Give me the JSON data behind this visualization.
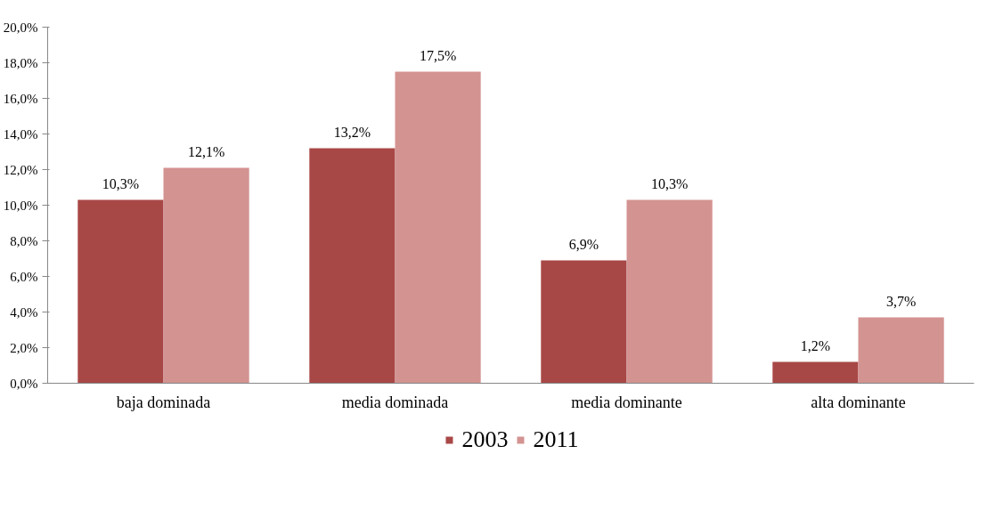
{
  "chart_data": {
    "type": "bar",
    "categories": [
      "baja dominada",
      "media dominada",
      "media dominante",
      "alta dominante"
    ],
    "series": [
      {
        "name": "2003",
        "color": "#a84846",
        "values": [
          10.3,
          13.2,
          6.9,
          1.2
        ],
        "value_labels": [
          "10,3%",
          "13,2%",
          "6,9%",
          "1,2%"
        ]
      },
      {
        "name": "2011",
        "color": "#d39391",
        "values": [
          12.1,
          17.5,
          10.3,
          3.7
        ],
        "value_labels": [
          "12,1%",
          "17,5%",
          "10,3%",
          "3,7%"
        ]
      }
    ],
    "ylim": [
      0,
      20
    ],
    "yticks": [
      {
        "value": 0,
        "label": "0,0%"
      },
      {
        "value": 2,
        "label": "2,0%"
      },
      {
        "value": 4,
        "label": "4,0%"
      },
      {
        "value": 6,
        "label": "6,0%"
      },
      {
        "value": 8,
        "label": "8,0%"
      },
      {
        "value": 10,
        "label": "10,0%"
      },
      {
        "value": 12,
        "label": "12,0%"
      },
      {
        "value": 14,
        "label": "14,0%"
      },
      {
        "value": 16,
        "label": "16,0%"
      },
      {
        "value": 18,
        "label": "18,0%"
      },
      {
        "value": 20,
        "label": "20,0%"
      }
    ],
    "grid": false,
    "legend": "bottom"
  }
}
